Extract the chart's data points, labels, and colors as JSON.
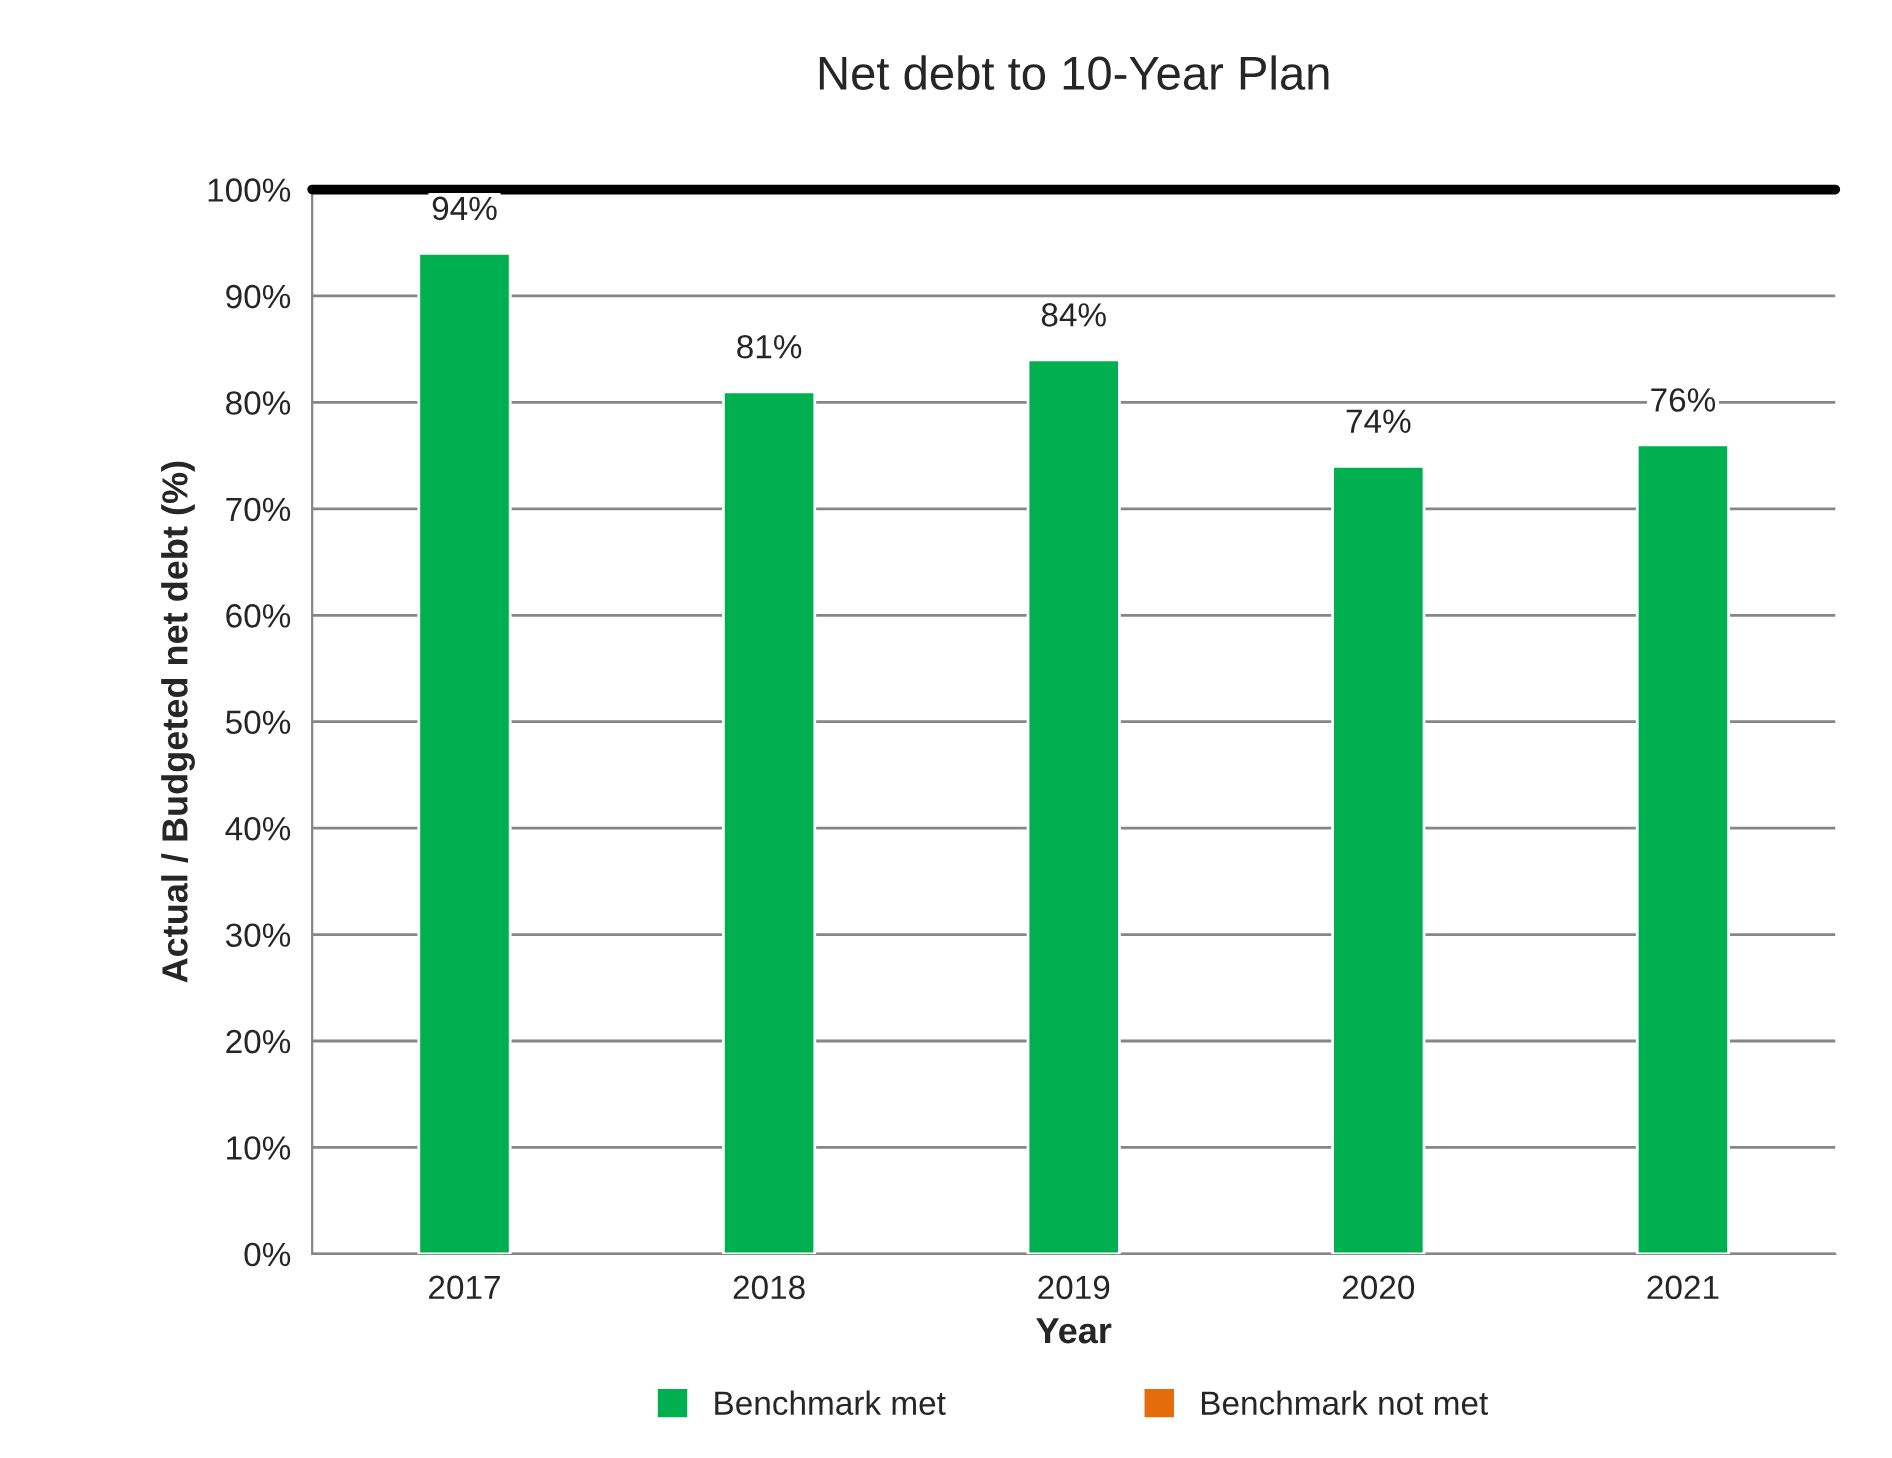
{
  "chart_data": {
    "type": "bar",
    "title": "Net debt to 10-Year Plan",
    "xlabel": "Year",
    "ylabel": "Actual / Budgeted net debt (%)",
    "categories": [
      "2017",
      "2018",
      "2019",
      "2020",
      "2021"
    ],
    "series": [
      {
        "name": "Benchmark met",
        "color": "#00b050",
        "values": [
          94,
          81,
          84,
          74,
          76
        ],
        "value_labels": [
          "94%",
          "81%",
          "84%",
          "74%",
          "76%"
        ]
      },
      {
        "name": "Benchmark not met",
        "color": "#e46c0a",
        "values": [
          null,
          null,
          null,
          null,
          null
        ]
      }
    ],
    "ylim": [
      0,
      100
    ],
    "yticks": [
      {
        "value": 0,
        "label": "0%"
      },
      {
        "value": 10,
        "label": "10%"
      },
      {
        "value": 20,
        "label": "20%"
      },
      {
        "value": 30,
        "label": "30%"
      },
      {
        "value": 40,
        "label": "40%"
      },
      {
        "value": 50,
        "label": "50%"
      },
      {
        "value": 60,
        "label": "60%"
      },
      {
        "value": 70,
        "label": "70%"
      },
      {
        "value": 80,
        "label": "80%"
      },
      {
        "value": 90,
        "label": "90%"
      },
      {
        "value": 100,
        "label": "100%"
      }
    ],
    "ref_lines": [
      {
        "axis": "y",
        "value": 100,
        "color": "#000000"
      }
    ],
    "grid": "y",
    "legend": "bottom"
  }
}
